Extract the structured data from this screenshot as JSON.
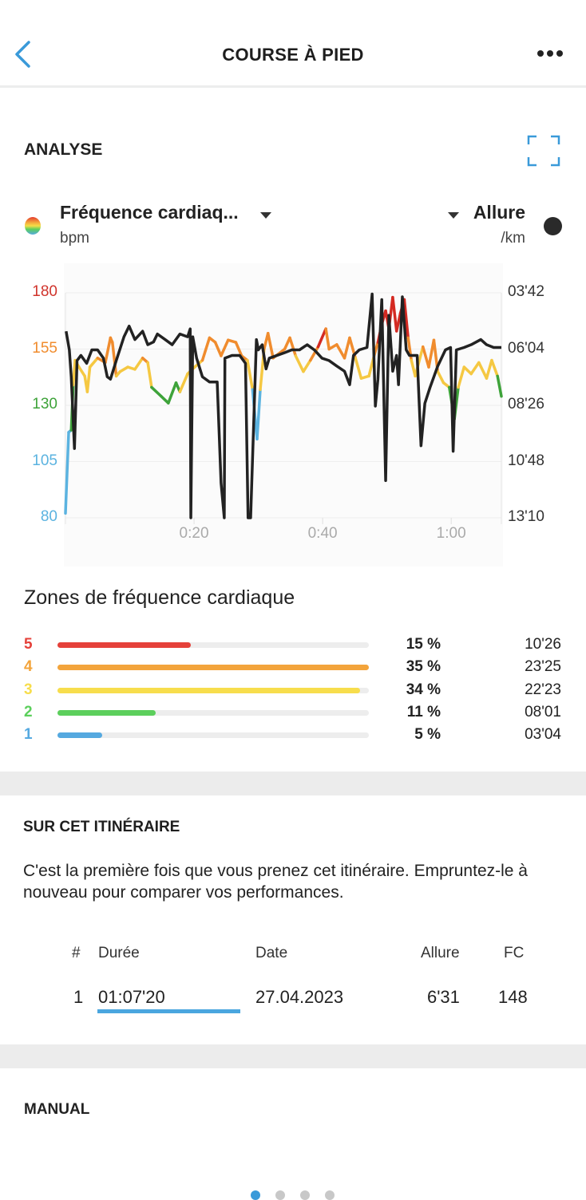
{
  "header": {
    "title": "COURSE À PIED",
    "back_icon": "chevron-left-icon",
    "more_icon": "more-horizontal-icon"
  },
  "analysis": {
    "section_title": "ANALYSE",
    "expand_icon": "fullscreen-icon",
    "left_metric": {
      "label": "Fréquence cardiaq...",
      "unit": "bpm"
    },
    "right_metric": {
      "label": "Allure",
      "unit": "/km"
    }
  },
  "chart_data": {
    "type": "line",
    "xlabel": "time",
    "x_ticks": [
      {
        "v": 20,
        "label": "0:20"
      },
      {
        "v": 40,
        "label": "0:40"
      },
      {
        "v": 60,
        "label": "1:00"
      }
    ],
    "xlim": [
      0,
      67.8
    ],
    "left_axis": {
      "name": "Fréquence cardiaque",
      "unit": "bpm",
      "ylim": [
        80,
        180
      ],
      "ticks": [
        {
          "v": 180,
          "label": "180",
          "color": "#d0342c"
        },
        {
          "v": 155,
          "label": "155",
          "color": "#f08c2e"
        },
        {
          "v": 130,
          "label": "130",
          "color": "#3ea33a"
        },
        {
          "v": 105,
          "label": "105",
          "color": "#5bb3e0"
        },
        {
          "v": 80,
          "label": "80",
          "color": "#5bb3e0"
        }
      ]
    },
    "right_axis": {
      "name": "Allure",
      "unit": "/km",
      "ylim_seconds": [
        222,
        790
      ],
      "ticks": [
        {
          "v": 222,
          "label": "03'42"
        },
        {
          "v": 364,
          "label": "06'04"
        },
        {
          "v": 506,
          "label": "08'26"
        },
        {
          "v": 648,
          "label": "10'48"
        },
        {
          "v": 790,
          "label": "13'10"
        }
      ]
    },
    "zone_thresholds": [
      128,
      139,
      150,
      160
    ],
    "zone_colors": [
      "#5bb3e0",
      "#3ea33a",
      "#f5c842",
      "#f08c2e",
      "#d42a22"
    ],
    "pace_color": "#222222",
    "series": [
      {
        "name": "Fréquence cardiaque",
        "points": [
          [
            0,
            82
          ],
          [
            0.5,
            118
          ],
          [
            0.9,
            119
          ],
          [
            1.2,
            139
          ],
          [
            1.5,
            150
          ],
          [
            2.1,
            147
          ],
          [
            3.0,
            143
          ],
          [
            3.4,
            136
          ],
          [
            3.8,
            147
          ],
          [
            5.0,
            151
          ],
          [
            6.2,
            149
          ],
          [
            7.0,
            160
          ],
          [
            7.3,
            158
          ],
          [
            7.9,
            143
          ],
          [
            8.5,
            145
          ],
          [
            9.7,
            147
          ],
          [
            10.8,
            146
          ],
          [
            12.0,
            151
          ],
          [
            12.8,
            149
          ],
          [
            13.4,
            138
          ],
          [
            14.9,
            134
          ],
          [
            16.0,
            131
          ],
          [
            17.2,
            140
          ],
          [
            17.8,
            136
          ],
          [
            19.0,
            144
          ],
          [
            20.1,
            147
          ],
          [
            21.3,
            150
          ],
          [
            22.4,
            160
          ],
          [
            23.3,
            158
          ],
          [
            24.2,
            152
          ],
          [
            25.3,
            159
          ],
          [
            26.5,
            158
          ],
          [
            27.4,
            152
          ],
          [
            28.3,
            150
          ],
          [
            29.1,
            137
          ],
          [
            29.8,
            115
          ],
          [
            30.3,
            137
          ],
          [
            30.9,
            155
          ],
          [
            31.5,
            162
          ],
          [
            32.3,
            151
          ],
          [
            34.1,
            155
          ],
          [
            34.9,
            160
          ],
          [
            35.8,
            152
          ],
          [
            37.0,
            145
          ],
          [
            38.1,
            150
          ],
          [
            39.3,
            156
          ],
          [
            40.5,
            164
          ],
          [
            41.0,
            155
          ],
          [
            42.2,
            157
          ],
          [
            43.4,
            151
          ],
          [
            44.2,
            160
          ],
          [
            45.1,
            151
          ],
          [
            46.0,
            142
          ],
          [
            47.2,
            143
          ],
          [
            48.0,
            152
          ],
          [
            48.6,
            158
          ],
          [
            49.2,
            166
          ],
          [
            49.8,
            172
          ],
          [
            50.3,
            164
          ],
          [
            50.9,
            178
          ],
          [
            51.5,
            163
          ],
          [
            52.1,
            171
          ],
          [
            52.7,
            177
          ],
          [
            53.3,
            160
          ],
          [
            53.8,
            150
          ],
          [
            54.4,
            143
          ],
          [
            55.6,
            156
          ],
          [
            56.5,
            147
          ],
          [
            57.3,
            159
          ],
          [
            57.9,
            145
          ],
          [
            58.8,
            140
          ],
          [
            59.7,
            138
          ],
          [
            60.5,
            124
          ],
          [
            61.1,
            138
          ],
          [
            62.0,
            147
          ],
          [
            63.1,
            144
          ],
          [
            64.3,
            149
          ],
          [
            65.5,
            142
          ],
          [
            66.3,
            150
          ],
          [
            67.2,
            143
          ],
          [
            67.8,
            134
          ]
        ]
      },
      {
        "name": "Allure",
        "points": [
          [
            0.1,
            319
          ],
          [
            0.6,
            366
          ],
          [
            0.9,
            434
          ],
          [
            1.4,
            615
          ],
          [
            1.8,
            393
          ],
          [
            2.4,
            380
          ],
          [
            3.3,
            400
          ],
          [
            4.1,
            366
          ],
          [
            5.0,
            366
          ],
          [
            5.9,
            387
          ],
          [
            6.5,
            434
          ],
          [
            7.0,
            440
          ],
          [
            7.9,
            393
          ],
          [
            9.1,
            333
          ],
          [
            9.9,
            306
          ],
          [
            10.8,
            340
          ],
          [
            12.0,
            319
          ],
          [
            12.8,
            353
          ],
          [
            13.7,
            346
          ],
          [
            14.3,
            326
          ],
          [
            15.5,
            340
          ],
          [
            16.6,
            353
          ],
          [
            17.8,
            326
          ],
          [
            19.0,
            333
          ],
          [
            19.4,
            313
          ],
          [
            19.5,
            790
          ],
          [
            19.8,
            333
          ],
          [
            20.4,
            387
          ],
          [
            21.3,
            434
          ],
          [
            22.4,
            447
          ],
          [
            23.6,
            447
          ],
          [
            24.2,
            702
          ],
          [
            24.7,
            790
          ],
          [
            24.8,
            387
          ],
          [
            25.9,
            380
          ],
          [
            27.1,
            380
          ],
          [
            28.0,
            400
          ],
          [
            28.4,
            790
          ],
          [
            28.8,
            790
          ],
          [
            29.7,
            340
          ],
          [
            30.0,
            366
          ],
          [
            30.6,
            353
          ],
          [
            31.2,
            414
          ],
          [
            31.7,
            387
          ],
          [
            32.9,
            380
          ],
          [
            34.1,
            373
          ],
          [
            35.2,
            366
          ],
          [
            36.4,
            366
          ],
          [
            37.6,
            353
          ],
          [
            38.7,
            366
          ],
          [
            39.9,
            387
          ],
          [
            41.0,
            393
          ],
          [
            42.2,
            407
          ],
          [
            43.4,
            420
          ],
          [
            44.2,
            454
          ],
          [
            44.8,
            380
          ],
          [
            45.7,
            366
          ],
          [
            46.9,
            360
          ],
          [
            47.7,
            225
          ],
          [
            48.2,
            508
          ],
          [
            48.6,
            440
          ],
          [
            49.2,
            239
          ],
          [
            49.8,
            696
          ],
          [
            50.3,
            279
          ],
          [
            50.9,
            420
          ],
          [
            51.5,
            380
          ],
          [
            51.8,
            454
          ],
          [
            52.4,
            232
          ],
          [
            53.0,
            366
          ],
          [
            53.5,
            380
          ],
          [
            54.7,
            380
          ],
          [
            55.3,
            608
          ],
          [
            55.9,
            501
          ],
          [
            56.7,
            461
          ],
          [
            57.9,
            407
          ],
          [
            59.1,
            366
          ],
          [
            59.9,
            360
          ],
          [
            60.3,
            622
          ],
          [
            60.8,
            366
          ],
          [
            62.0,
            360
          ],
          [
            63.1,
            353
          ],
          [
            64.6,
            340
          ],
          [
            65.5,
            353
          ],
          [
            66.6,
            360
          ],
          [
            67.8,
            360
          ]
        ]
      }
    ]
  },
  "zones": {
    "title": "Zones de fréquence cardiaque",
    "items": [
      {
        "zone": "5",
        "percent": 15,
        "percent_label": "15 %",
        "time": "10'26",
        "color": "#e5413a"
      },
      {
        "zone": "4",
        "percent": 35,
        "percent_label": "35 %",
        "time": "23'25",
        "color": "#f3a43b"
      },
      {
        "zone": "3",
        "percent": 34,
        "percent_label": "34 %",
        "time": "22'23",
        "color": "#f7dd4c"
      },
      {
        "zone": "2",
        "percent": 11,
        "percent_label": "11 %",
        "time": "08'01",
        "color": "#5ccf5c"
      },
      {
        "zone": "1",
        "percent": 5,
        "percent_label": "5 %",
        "time": "03'04",
        "color": "#55a9e0"
      }
    ],
    "max_percent": 35
  },
  "route": {
    "section_title": "SUR CET ITINÉRAIRE",
    "message": "C'est la première fois que vous prenez cet itinéraire. Empruntez-le à nouveau pour comparer vos performances.",
    "columns": [
      "#",
      "Durée",
      "Date",
      "Allure",
      "FC"
    ],
    "rows": [
      {
        "rank": "1",
        "duration": "01:07'20",
        "date": "27.04.2023",
        "pace": "6'31",
        "hr": "148"
      }
    ]
  },
  "manual": {
    "section_title": "MANUAL"
  },
  "pager": {
    "count": 4,
    "active": 0
  }
}
